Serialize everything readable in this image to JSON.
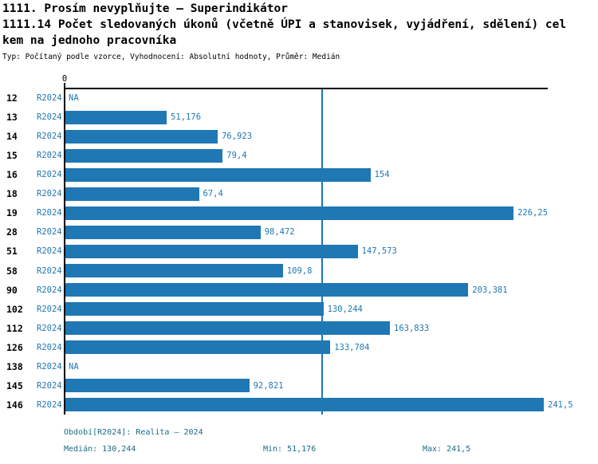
{
  "header": {
    "title_line1": "1111. Prosím nevyplňujte – Superindikátor",
    "title_line2": "1111.14 Počet sledovaných úkonů (včetně ÚPI a stanovisek, vyjádření, sdělení) cel",
    "title_line3": "kem na jednoho pracovníka",
    "subtitle": "Typ: Počítaný podle vzorce, Vyhodnocení: Absolutní hodnoty, Průměr: Medián"
  },
  "chart_data": {
    "type": "bar",
    "orientation": "horizontal",
    "title": "1111.14 Počet sledovaných úkonů (včetně ÚPI a stanovisek, vyjádření, sdělení) celkem na jednoho pracovníka",
    "categories": [
      "12",
      "13",
      "14",
      "15",
      "16",
      "18",
      "19",
      "28",
      "51",
      "58",
      "90",
      "102",
      "112",
      "126",
      "138",
      "145",
      "146"
    ],
    "series": [
      {
        "name": "R2024",
        "values": [
          null,
          51.176,
          76.923,
          79.4,
          154,
          67.4,
          226.25,
          98.472,
          147.573,
          109.8,
          203.381,
          130.244,
          163.833,
          133.704,
          null,
          92.821,
          241.5
        ],
        "value_labels": [
          "NA",
          "51,176",
          "76,923",
          "79,4",
          "154",
          "67,4",
          "226,25",
          "98,472",
          "147,573",
          "109,8",
          "203,381",
          "130,244",
          "163,833",
          "133,704",
          "NA",
          "92,821",
          "241,5"
        ]
      }
    ],
    "x_axis": {
      "origin_label": "0",
      "range": [
        0,
        241.5
      ]
    },
    "median_line_value": 130.244,
    "stats": {
      "median": 130.244,
      "min": 51.176,
      "max": 241.5
    },
    "legend_position": "none",
    "grid": false,
    "colors": {
      "bar": "#1f77b4",
      "series_label": "#1f77b4",
      "value_label": "#1f77b4",
      "median_line": "#1f77b4",
      "axis": "#000000",
      "footer_text": "#1a6b88"
    }
  },
  "footer": {
    "period": "Období[R2024]: Realita – 2024",
    "median": "Medián: 130,244",
    "min": "Min: 51,176",
    "max": "Max: 241,5"
  }
}
